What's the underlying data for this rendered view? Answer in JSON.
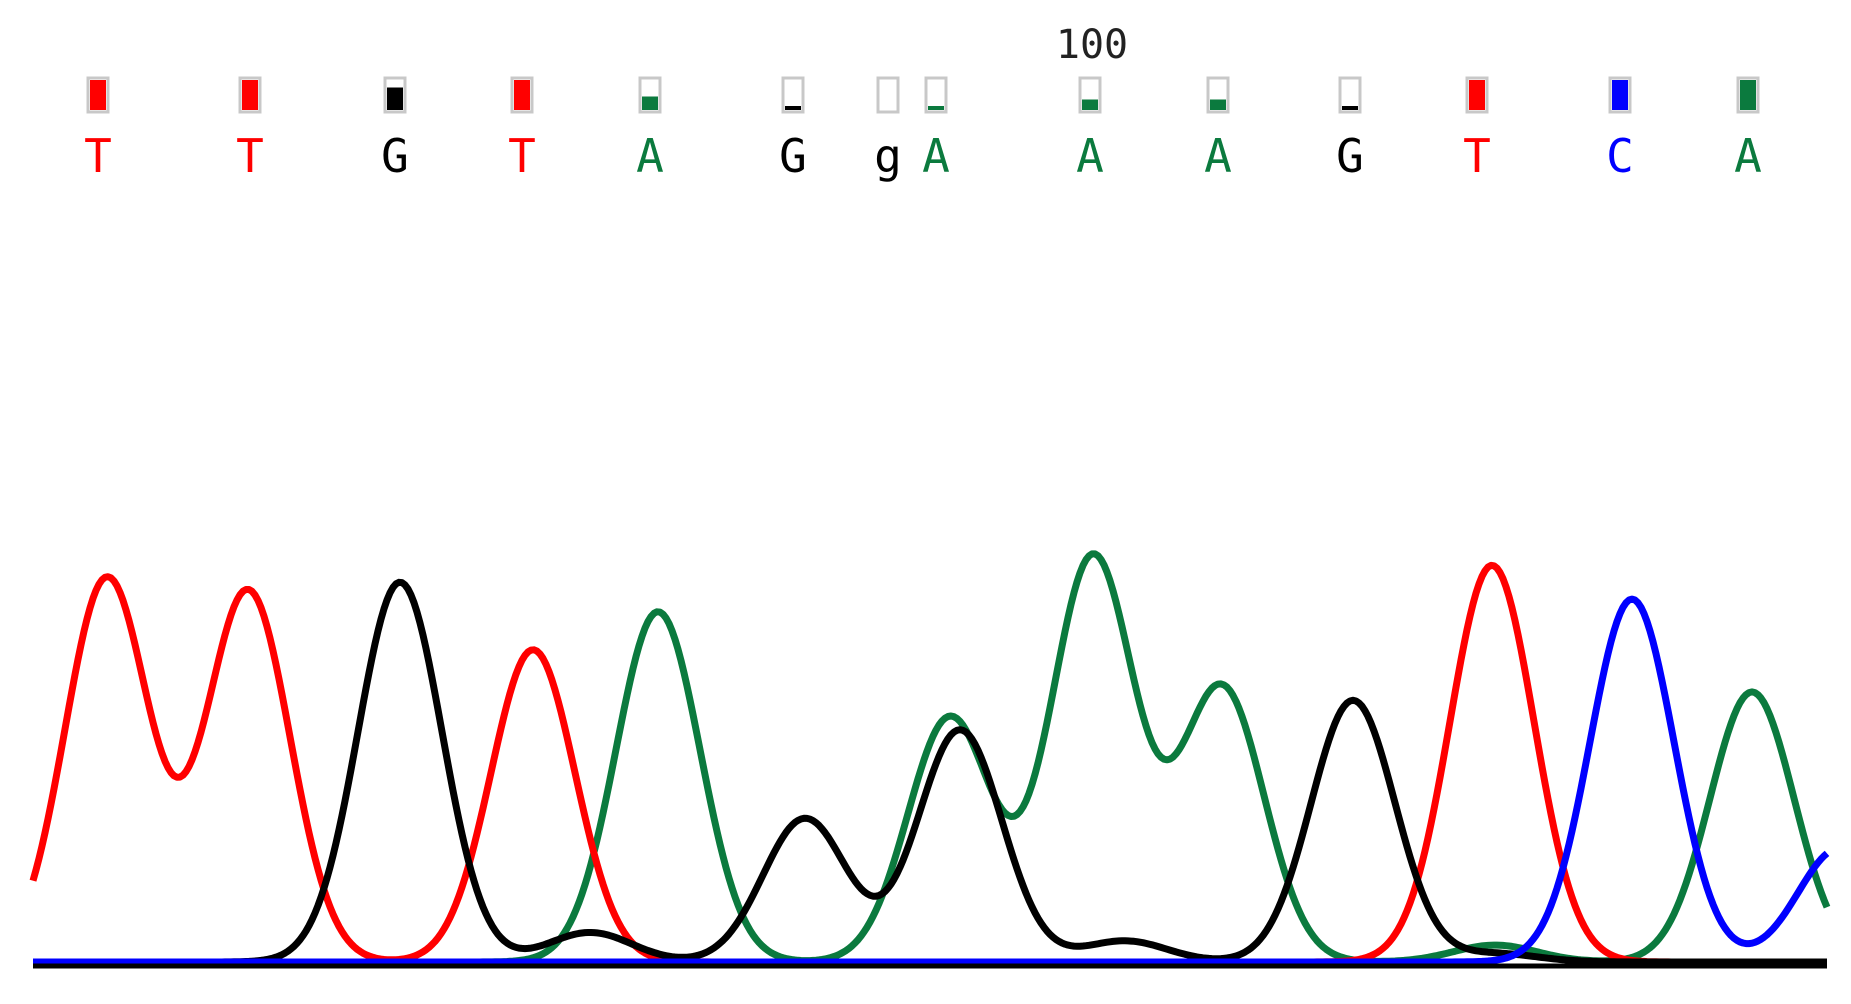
{
  "chart_data": {
    "type": "line",
    "title": "",
    "xlabel": "",
    "ylabel": "",
    "position_label": "100",
    "colors": {
      "A": "#0b7a3e",
      "C": "#0000ff",
      "G": "#000000",
      "T": "#ff0000",
      "lowercase": "#000000",
      "quality_border": "#c8c8c8"
    },
    "bases": [
      {
        "label": "T",
        "channel": "T",
        "quality": 1.0
      },
      {
        "label": "T",
        "channel": "T",
        "quality": 1.0
      },
      {
        "label": "G",
        "channel": "G",
        "quality": 0.75
      },
      {
        "label": "T",
        "channel": "T",
        "quality": 1.0
      },
      {
        "label": "A",
        "channel": "A",
        "quality": 0.45
      },
      {
        "label": "G",
        "channel": "G",
        "quality": 0.1
      },
      {
        "label": "g",
        "channel": "lowercase",
        "quality": 0.0
      },
      {
        "label": "A",
        "channel": "A",
        "quality": 0.1
      },
      {
        "label": "A",
        "channel": "A",
        "quality": 0.35
      },
      {
        "label": "A",
        "channel": "A",
        "quality": 0.35
      },
      {
        "label": "G",
        "channel": "G",
        "quality": 0.1
      },
      {
        "label": "T",
        "channel": "T",
        "quality": 1.0
      },
      {
        "label": "C",
        "channel": "C",
        "quality": 1.0
      },
      {
        "label": "A",
        "channel": "A",
        "quality": 1.0
      }
    ],
    "ylim": [
      0,
      100
    ],
    "series": [
      {
        "channel": "T",
        "peaks": [
          {
            "x": 107,
            "h": 91
          },
          {
            "x": 248,
            "h": 88
          },
          {
            "x": 533,
            "h": 74
          },
          {
            "x": 1492,
            "h": 94
          }
        ]
      },
      {
        "channel": "G",
        "peaks": [
          {
            "x": 400,
            "h": 90
          },
          {
            "x": 590,
            "h": 7
          },
          {
            "x": 805,
            "h": 34
          },
          {
            "x": 960,
            "h": 55
          },
          {
            "x": 1125,
            "h": 5
          },
          {
            "x": 1353,
            "h": 62
          },
          {
            "x": 1495,
            "h": 2
          }
        ]
      },
      {
        "channel": "A",
        "peaks": [
          {
            "x": 658,
            "h": 83
          },
          {
            "x": 950,
            "h": 58
          },
          {
            "x": 1093,
            "h": 96
          },
          {
            "x": 1222,
            "h": 65
          },
          {
            "x": 1495,
            "h": 4
          },
          {
            "x": 1752,
            "h": 64
          }
        ]
      },
      {
        "channel": "C",
        "peaks": [
          {
            "x": 1632,
            "h": 86
          },
          {
            "x": 1840,
            "h": 27
          }
        ]
      }
    ]
  }
}
